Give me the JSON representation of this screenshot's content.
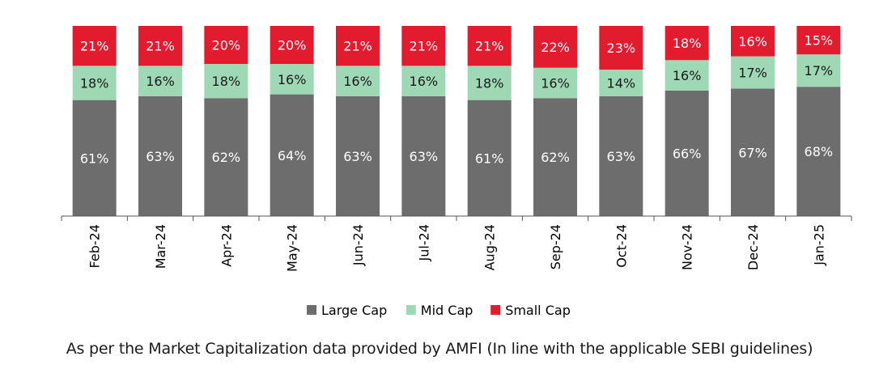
{
  "chart_data": {
    "type": "bar",
    "stacked": true,
    "percent": true,
    "categories": [
      "Feb-24",
      "Mar-24",
      "Apr-24",
      "May-24",
      "Jun-24",
      "Jul-24",
      "Aug-24",
      "Sep-24",
      "Oct-24",
      "Nov-24",
      "Dec-24",
      "Jan-25"
    ],
    "series": [
      {
        "name": "Large Cap",
        "color": "#6d6d6d",
        "label_color": "#ffffff",
        "values": [
          61,
          63,
          62,
          64,
          63,
          63,
          61,
          62,
          63,
          66,
          67,
          68
        ]
      },
      {
        "name": "Mid Cap",
        "color": "#9fd8b4",
        "label_color": "#1a1a1a",
        "values": [
          18,
          16,
          18,
          16,
          16,
          16,
          18,
          16,
          14,
          16,
          17,
          17
        ]
      },
      {
        "name": "Small Cap",
        "color": "#e21b2e",
        "label_color": "#ffffff",
        "values": [
          21,
          21,
          20,
          20,
          21,
          21,
          21,
          22,
          23,
          18,
          16,
          15
        ]
      }
    ],
    "ylim": [
      0,
      100
    ],
    "grid": false,
    "legend_position": "bottom"
  },
  "footnote": "As per the Market Capitalization data provided by AMFI (In line with the applicable SEBI guidelines)"
}
